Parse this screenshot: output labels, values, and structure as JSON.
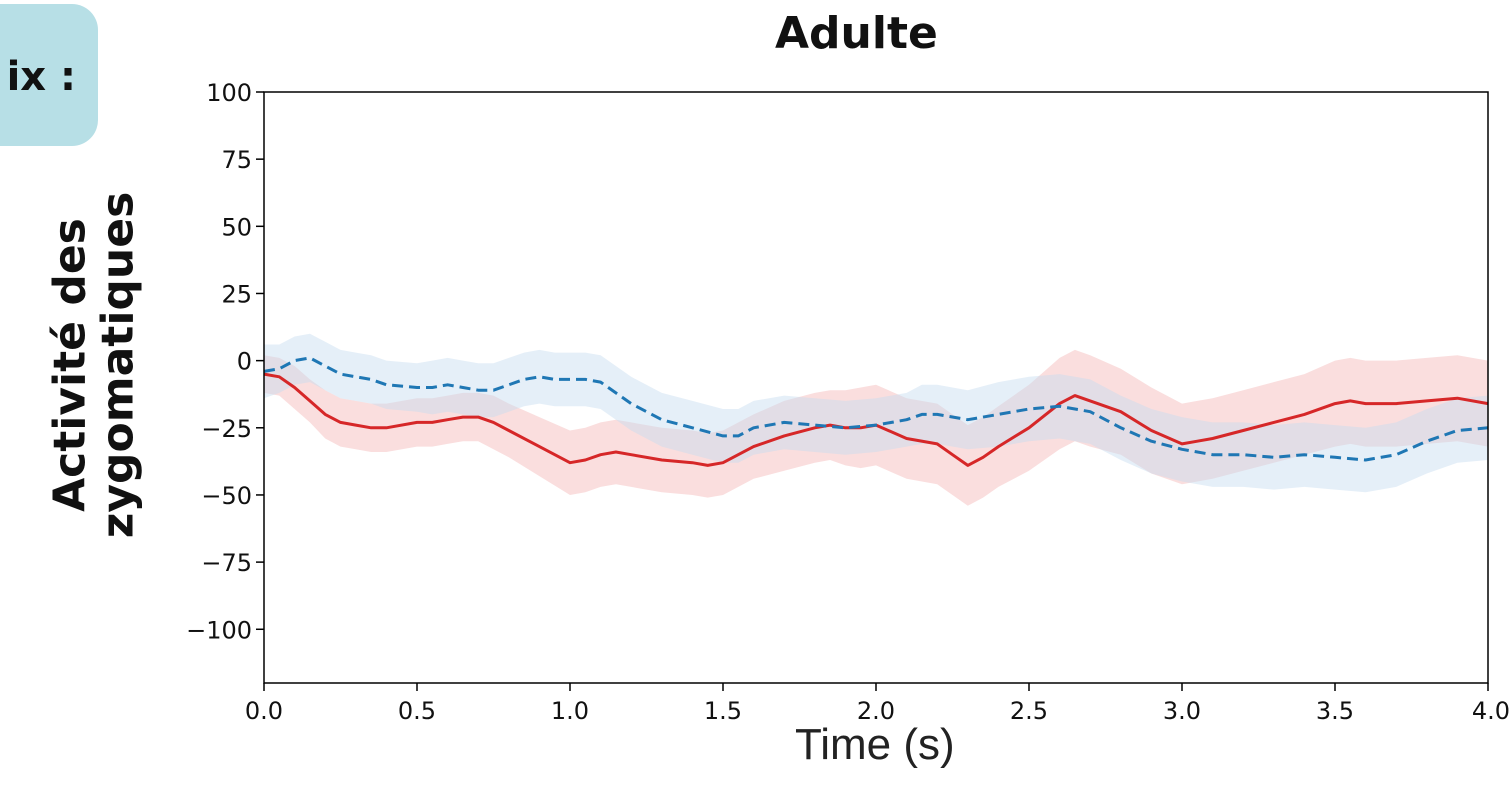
{
  "badge": {
    "text": "ix :"
  },
  "ylabel_lines": [
    "Activité des",
    "zygomatiques"
  ],
  "chart_data": {
    "type": "line",
    "title": "Adulte",
    "xlabel": "Time (s)",
    "ylabel": "Activité des zygomatiques",
    "xlim": [
      0.0,
      4.0
    ],
    "ylim": [
      -120,
      100
    ],
    "xticks": [
      "0.0",
      "0.5",
      "1.0",
      "1.5",
      "2.0",
      "2.5",
      "3.0",
      "3.5",
      "4.0"
    ],
    "yticks": [
      "100",
      "75",
      "50",
      "25",
      "0",
      "−25",
      "−50",
      "−75",
      "−100"
    ],
    "grid": false,
    "series": [
      {
        "color": "#d62728",
        "linestyle": "solid",
        "band_color": "#f4b6b6",
        "x": [
          0.0,
          0.05,
          0.1,
          0.15,
          0.2,
          0.25,
          0.3,
          0.35,
          0.4,
          0.5,
          0.55,
          0.6,
          0.65,
          0.7,
          0.75,
          0.8,
          0.9,
          1.0,
          1.05,
          1.1,
          1.15,
          1.2,
          1.3,
          1.4,
          1.45,
          1.5,
          1.6,
          1.7,
          1.8,
          1.85,
          1.9,
          1.95,
          2.0,
          2.1,
          2.2,
          2.25,
          2.3,
          2.35,
          2.4,
          2.5,
          2.6,
          2.65,
          2.7,
          2.8,
          2.9,
          3.0,
          3.05,
          3.1,
          3.2,
          3.3,
          3.4,
          3.5,
          3.55,
          3.6,
          3.7,
          3.8,
          3.9,
          4.0
        ],
        "y": [
          -5,
          -6,
          -10,
          -15,
          -20,
          -23,
          -24,
          -25,
          -25,
          -23,
          -23,
          -22,
          -21,
          -21,
          -23,
          -26,
          -32,
          -38,
          -37,
          -35,
          -34,
          -35,
          -37,
          -38,
          -39,
          -38,
          -32,
          -28,
          -25,
          -24,
          -25,
          -25,
          -24,
          -29,
          -31,
          -35,
          -39,
          -36,
          -32,
          -25,
          -16,
          -13,
          -15,
          -19,
          -26,
          -31,
          -30,
          -29,
          -26,
          -23,
          -20,
          -16,
          -15,
          -16,
          -16,
          -15,
          -14,
          -16
        ],
        "band": [
          7,
          7,
          8,
          8,
          9,
          9,
          9,
          9,
          9,
          9,
          9,
          9,
          9,
          9,
          10,
          10,
          11,
          12,
          12,
          12,
          12,
          12,
          12,
          12,
          12,
          12,
          12,
          13,
          13,
          13,
          14,
          15,
          15,
          15,
          15,
          15,
          15,
          15,
          15,
          16,
          17,
          17,
          17,
          16,
          16,
          15,
          15,
          15,
          15,
          15,
          15,
          16,
          16,
          16,
          16,
          16,
          16,
          16
        ]
      },
      {
        "color": "#1f77b4",
        "linestyle": "dashed",
        "band_color": "#c6dbef",
        "x": [
          0.0,
          0.05,
          0.1,
          0.15,
          0.2,
          0.25,
          0.3,
          0.35,
          0.4,
          0.5,
          0.55,
          0.6,
          0.65,
          0.7,
          0.75,
          0.8,
          0.85,
          0.9,
          0.95,
          1.0,
          1.05,
          1.1,
          1.15,
          1.2,
          1.3,
          1.4,
          1.5,
          1.55,
          1.6,
          1.7,
          1.8,
          1.9,
          2.0,
          2.1,
          2.15,
          2.2,
          2.3,
          2.4,
          2.5,
          2.6,
          2.7,
          2.8,
          2.9,
          3.0,
          3.1,
          3.2,
          3.3,
          3.4,
          3.5,
          3.6,
          3.7,
          3.8,
          3.9,
          4.0
        ],
        "y": [
          -4,
          -3,
          0,
          1,
          -2,
          -5,
          -6,
          -7,
          -9,
          -10,
          -10,
          -9,
          -10,
          -11,
          -11,
          -9,
          -7,
          -6,
          -7,
          -7,
          -7,
          -8,
          -12,
          -16,
          -22,
          -25,
          -28,
          -28,
          -25,
          -23,
          -24,
          -25,
          -24,
          -22,
          -20,
          -20,
          -22,
          -20,
          -18,
          -17,
          -19,
          -25,
          -30,
          -33,
          -35,
          -35,
          -36,
          -35,
          -36,
          -37,
          -35,
          -30,
          -26,
          -25
        ],
        "band": [
          10,
          9,
          9,
          9,
          9,
          9,
          9,
          9,
          9,
          9,
          10,
          10,
          10,
          10,
          10,
          10,
          10,
          10,
          10,
          10,
          10,
          10,
          10,
          10,
          10,
          10,
          10,
          10,
          10,
          10,
          10,
          10,
          10,
          10,
          11,
          11,
          11,
          12,
          12,
          12,
          12,
          12,
          12,
          12,
          12,
          12,
          12,
          12,
          12,
          12,
          12,
          12,
          12,
          12
        ]
      }
    ]
  }
}
